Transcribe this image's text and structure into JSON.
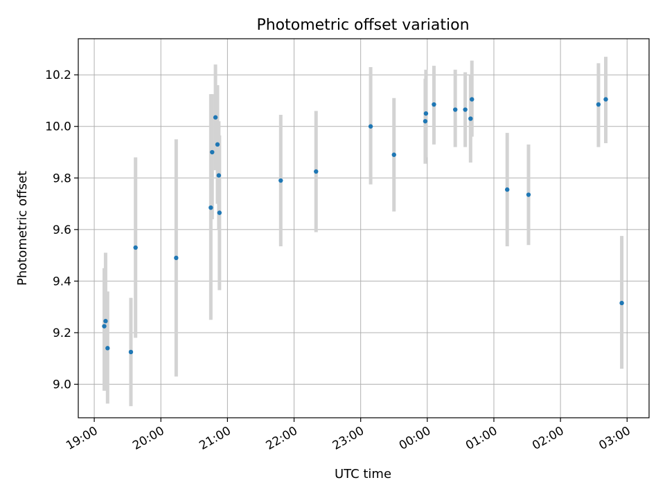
{
  "chart_data": {
    "type": "scatter",
    "title": "Photometric offset variation",
    "xlabel": "UTC time",
    "ylabel": "Photometric offset",
    "x_unit": "hours",
    "xlim": [
      18.76,
      27.33
    ],
    "ylim": [
      8.87,
      10.34
    ],
    "grid": true,
    "x_ticks": [
      {
        "value": 19,
        "label": "19:00"
      },
      {
        "value": 20,
        "label": "20:00"
      },
      {
        "value": 21,
        "label": "21:00"
      },
      {
        "value": 22,
        "label": "22:00"
      },
      {
        "value": 23,
        "label": "23:00"
      },
      {
        "value": 24,
        "label": "00:00"
      },
      {
        "value": 25,
        "label": "01:00"
      },
      {
        "value": 26,
        "label": "02:00"
      },
      {
        "value": 27,
        "label": "03:00"
      }
    ],
    "y_ticks": [
      {
        "value": 9.0,
        "label": "9.0"
      },
      {
        "value": 9.2,
        "label": "9.2"
      },
      {
        "value": 9.4,
        "label": "9.4"
      },
      {
        "value": 9.6,
        "label": "9.6"
      },
      {
        "value": 9.8,
        "label": "9.8"
      },
      {
        "value": 10.0,
        "label": "10.0"
      },
      {
        "value": 10.2,
        "label": "10.2"
      }
    ],
    "colors": {
      "marker": "#1f77b4",
      "errorbar": "#d3d3d3",
      "grid": "#b0b0b0"
    },
    "points": [
      {
        "x": 19.15,
        "y": 9.225,
        "err_low": 8.975,
        "err_high": 9.45
      },
      {
        "x": 19.17,
        "y": 9.245,
        "err_low": 8.975,
        "err_high": 9.51
      },
      {
        "x": 19.2,
        "y": 9.14,
        "err_low": 8.925,
        "err_high": 9.36
      },
      {
        "x": 19.55,
        "y": 9.125,
        "err_low": 8.915,
        "err_high": 9.335
      },
      {
        "x": 19.62,
        "y": 9.53,
        "err_low": 9.18,
        "err_high": 9.88
      },
      {
        "x": 20.23,
        "y": 9.49,
        "err_low": 9.03,
        "err_high": 9.95
      },
      {
        "x": 20.75,
        "y": 9.685,
        "err_low": 9.25,
        "err_high": 10.125
      },
      {
        "x": 20.77,
        "y": 9.9,
        "err_low": 9.64,
        "err_high": 10.125
      },
      {
        "x": 20.82,
        "y": 10.035,
        "err_low": 9.83,
        "err_high": 10.24
      },
      {
        "x": 20.85,
        "y": 9.93,
        "err_low": 9.7,
        "err_high": 10.16
      },
      {
        "x": 20.87,
        "y": 9.81,
        "err_low": 9.6,
        "err_high": 10.02
      },
      {
        "x": 20.88,
        "y": 9.665,
        "err_low": 9.365,
        "err_high": 9.965
      },
      {
        "x": 21.8,
        "y": 9.79,
        "err_low": 9.535,
        "err_high": 10.045
      },
      {
        "x": 22.33,
        "y": 9.825,
        "err_low": 9.59,
        "err_high": 10.06
      },
      {
        "x": 23.15,
        "y": 10.0,
        "err_low": 9.775,
        "err_high": 10.23
      },
      {
        "x": 23.5,
        "y": 9.89,
        "err_low": 9.67,
        "err_high": 10.11
      },
      {
        "x": 23.97,
        "y": 10.02,
        "err_low": 9.855,
        "err_high": 10.185
      },
      {
        "x": 23.98,
        "y": 10.05,
        "err_low": 9.88,
        "err_high": 10.22
      },
      {
        "x": 24.1,
        "y": 10.085,
        "err_low": 9.93,
        "err_high": 10.235
      },
      {
        "x": 24.42,
        "y": 10.065,
        "err_low": 9.92,
        "err_high": 10.22
      },
      {
        "x": 24.57,
        "y": 10.065,
        "err_low": 9.92,
        "err_high": 10.21
      },
      {
        "x": 24.65,
        "y": 10.03,
        "err_low": 9.86,
        "err_high": 10.2
      },
      {
        "x": 24.67,
        "y": 10.105,
        "err_low": 9.96,
        "err_high": 10.255
      },
      {
        "x": 25.2,
        "y": 9.755,
        "err_low": 9.535,
        "err_high": 9.975
      },
      {
        "x": 25.52,
        "y": 9.735,
        "err_low": 9.54,
        "err_high": 9.93
      },
      {
        "x": 26.57,
        "y": 10.085,
        "err_low": 9.92,
        "err_high": 10.245
      },
      {
        "x": 26.68,
        "y": 10.105,
        "err_low": 9.935,
        "err_high": 10.27
      },
      {
        "x": 26.92,
        "y": 9.315,
        "err_low": 9.06,
        "err_high": 9.575
      }
    ]
  }
}
